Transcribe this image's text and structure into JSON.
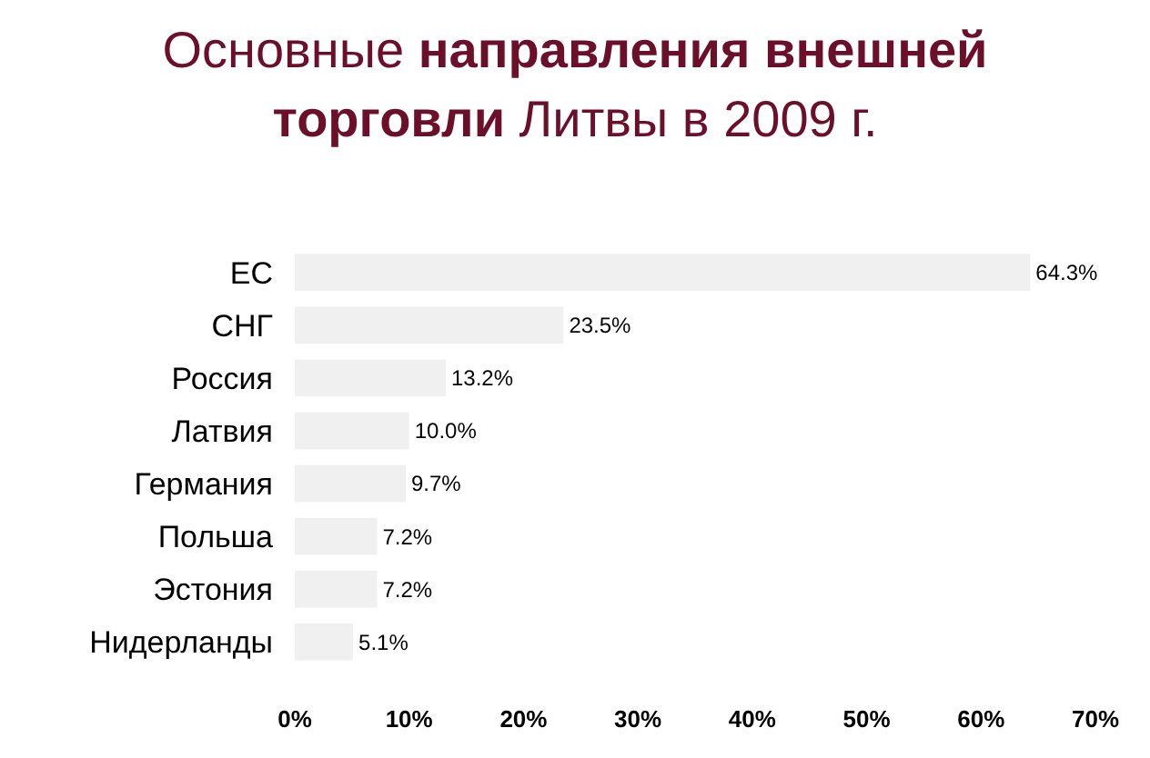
{
  "chart_data": {
    "type": "bar",
    "orientation": "horizontal",
    "title": "Основные направления внешней торговли Литвы в 2009 г.",
    "categories": [
      "ЕС",
      "СНГ",
      "Россия",
      "Латвия",
      "Германия",
      "Польша",
      "Эстония",
      "Нидерланды"
    ],
    "values": [
      64.3,
      23.5,
      13.2,
      10.0,
      9.7,
      7.2,
      7.2,
      5.1
    ],
    "value_labels": [
      "64.3%",
      "23.5%",
      "13.2%",
      "10.0%",
      "9.7%",
      "7.2%",
      "7.2%",
      "5.1%"
    ],
    "color": "#f0f0f0",
    "xlim": [
      0,
      70
    ],
    "xticks": [
      {
        "value": 0,
        "label": "0%"
      },
      {
        "value": 10,
        "label": "10%"
      },
      {
        "value": 20,
        "label": "20%"
      },
      {
        "value": 30,
        "label": "30%"
      },
      {
        "value": 40,
        "label": "40%"
      },
      {
        "value": 50,
        "label": "50%"
      },
      {
        "value": 60,
        "label": "60%"
      },
      {
        "value": 70,
        "label": "70%"
      }
    ]
  }
}
